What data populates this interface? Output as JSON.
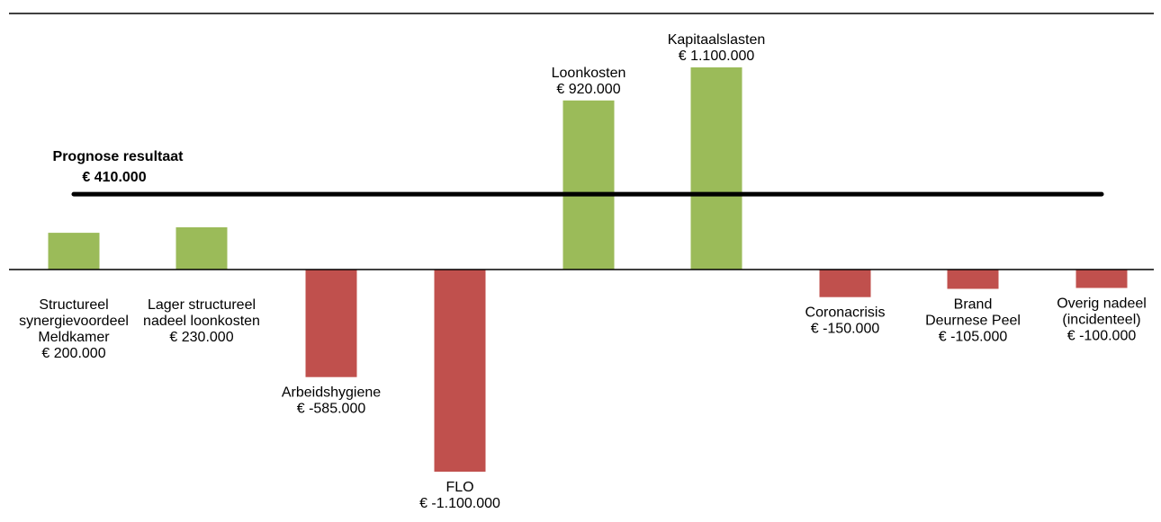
{
  "chart_data": {
    "type": "bar",
    "colors": {
      "positive": "#9bbb59",
      "negative": "#c0504d",
      "axis": "#000000",
      "prognosis_line": "#000000"
    },
    "grid": false,
    "categories": [
      "Structureel synergievoordeel Meldkamer",
      "Lager structureel nadeel loonkosten",
      "Arbeidshygiene",
      "FLO",
      "Loonkosten",
      "Kapitaalslasten",
      "Coronacrisis",
      "Brand Deurnese Peel",
      "Overig nadeel (incidenteel)"
    ],
    "values": [
      200000,
      230000,
      -585000,
      -1100000,
      920000,
      1100000,
      -150000,
      -105000,
      -100000
    ],
    "bars": [
      {
        "label_lines": [
          "Structureel",
          "synergievoordeel",
          "Meldkamer",
          "€ 200.000"
        ]
      },
      {
        "label_lines": [
          "Lager structureel",
          "nadeel loonkosten",
          "€ 230.000"
        ]
      },
      {
        "label_lines": [
          "Arbeidshygiene",
          "€ -585.000"
        ]
      },
      {
        "label_lines": [
          "FLO",
          "€ -1.100.000"
        ]
      },
      {
        "label_lines": [
          "Loonkosten",
          "€ 920.000"
        ]
      },
      {
        "label_lines": [
          "Kapitaalslasten",
          "€ 1.100.000"
        ]
      },
      {
        "label_lines": [
          "Coronacrisis",
          "€ -150.000"
        ]
      },
      {
        "label_lines": [
          "Brand",
          "Deurnese Peel",
          "€ -105.000"
        ]
      },
      {
        "label_lines": [
          "Overig nadeel",
          "(incidenteel)",
          "€ -100.000"
        ]
      }
    ],
    "prognosis": {
      "title": "Prognose resultaat",
      "value_label": "€ 410.000",
      "value": 410000
    }
  }
}
